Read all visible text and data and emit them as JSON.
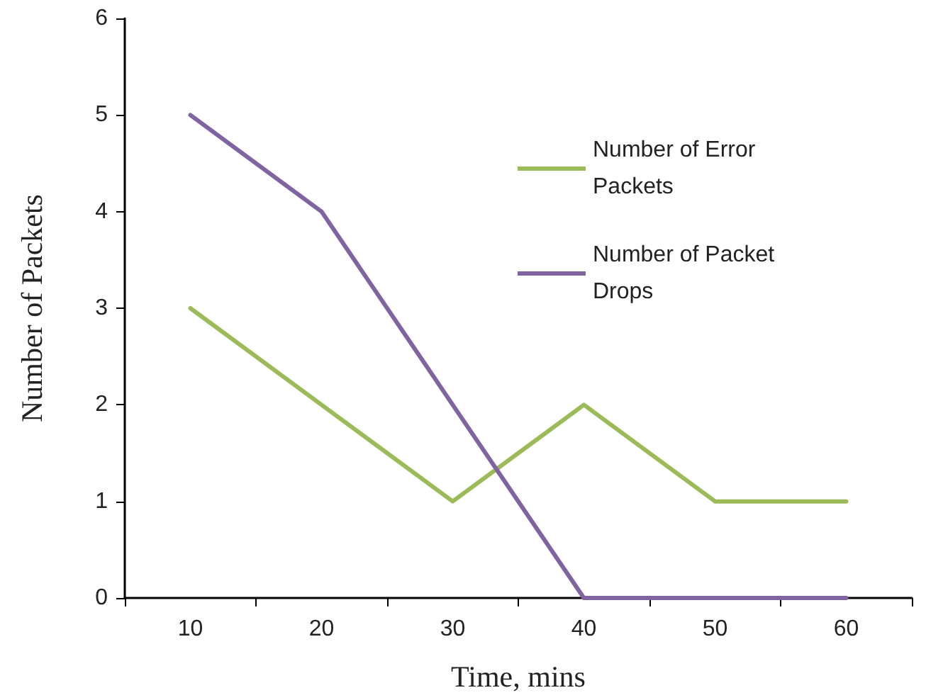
{
  "chart_data": {
    "type": "line",
    "xlabel": "Time, mins",
    "ylabel": "Number of Packets",
    "categories": [
      "10",
      "20",
      "30",
      "40",
      "50",
      "60"
    ],
    "series": [
      {
        "name": "Number of Error Packets",
        "color": "#9bbb59",
        "values": [
          3,
          2,
          1,
          2,
          1,
          1
        ]
      },
      {
        "name": "Number of Packet Drops",
        "color": "#8064a2",
        "values": [
          5,
          4,
          2,
          0,
          0,
          0
        ]
      }
    ],
    "ylim": [
      0,
      6
    ],
    "yticks": [
      0,
      1,
      2,
      3,
      4,
      5,
      6
    ],
    "grid": false,
    "legend": "top right",
    "marker": "none",
    "line_style": "solid"
  }
}
